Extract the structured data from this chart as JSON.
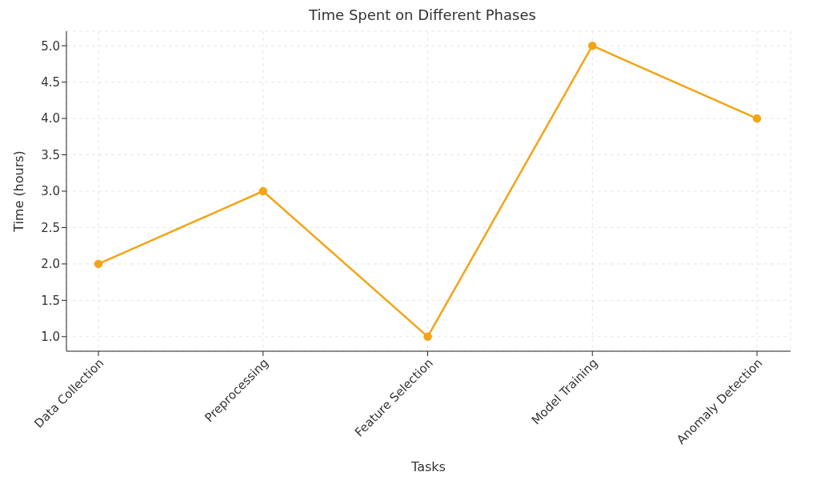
{
  "chart_data": {
    "type": "line",
    "title": "Time Spent on Different Phases",
    "xlabel": "Tasks",
    "ylabel": "Time (hours)",
    "categories": [
      "Data Collection",
      "Preprocessing",
      "Feature Selection",
      "Model Training",
      "Anomaly Detection"
    ],
    "series": [
      {
        "color": "#f2a516",
        "values": [
          2,
          3,
          1,
          5,
          4
        ]
      }
    ],
    "ylim": [
      0.8,
      5.2
    ],
    "yticks": [
      {
        "value": 1,
        "label": "1.0"
      },
      {
        "value": 1.5,
        "label": "1.5"
      },
      {
        "value": 2,
        "label": "2.0"
      },
      {
        "value": 2.5,
        "label": "2.5"
      },
      {
        "value": 3,
        "label": "3.0"
      },
      {
        "value": 3.5,
        "label": "3.5"
      },
      {
        "value": 4,
        "label": "4.0"
      },
      {
        "value": 4.5,
        "label": "4.5"
      },
      {
        "value": 5,
        "label": "5.0"
      }
    ],
    "grid": true,
    "marker": "circle",
    "line_style": "solid"
  }
}
